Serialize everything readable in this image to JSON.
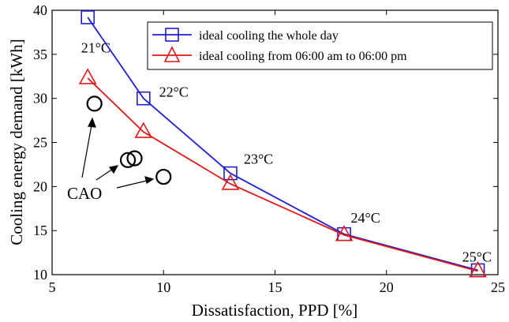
{
  "chart_data": {
    "type": "line",
    "xlabel": "Dissatisfaction, PPD [%]",
    "ylabel": "Cooling energy demand [kWh]",
    "xlim": [
      5,
      25
    ],
    "ylim": [
      10,
      40
    ],
    "xticks": [
      5,
      10,
      15,
      20,
      25
    ],
    "yticks": [
      10,
      15,
      20,
      25,
      30,
      35,
      40
    ],
    "xtick_labels": [
      "5",
      "10",
      "15",
      "20",
      "25"
    ],
    "ytick_labels": [
      "10",
      "15",
      "20",
      "25",
      "30",
      "35",
      "40"
    ],
    "grid": false,
    "legend_position": "top-right",
    "series": [
      {
        "name": "ideal cooling the whole day",
        "color": "#1f1fd1",
        "marker": "square",
        "x": [
          6.6,
          9.1,
          13.0,
          18.1,
          24.1
        ],
        "y": [
          39.2,
          30.0,
          21.5,
          14.6,
          10.5
        ]
      },
      {
        "name": "ideal cooling from 06:00 am to 06:00 pm",
        "color": "#e01818",
        "marker": "triangle",
        "x": [
          6.6,
          9.1,
          13.0,
          18.1,
          24.1
        ],
        "y": [
          32.3,
          26.2,
          20.3,
          14.5,
          10.4
        ]
      }
    ],
    "cao_points": {
      "marker": "circle",
      "x": [
        6.9,
        8.4,
        8.7,
        10.0
      ],
      "y": [
        29.4,
        23.0,
        23.2,
        21.1
      ]
    },
    "annotations": [
      {
        "text": "21°C",
        "x": 6.3,
        "y": 35.2
      },
      {
        "text": "22°C",
        "x": 9.8,
        "y": 30.2
      },
      {
        "text": "23°C",
        "x": 13.6,
        "y": 22.6
      },
      {
        "text": "24°C",
        "x": 18.4,
        "y": 15.9
      },
      {
        "text": "25°C",
        "x": 23.4,
        "y": 11.5
      }
    ],
    "cao_label": "CAO"
  }
}
